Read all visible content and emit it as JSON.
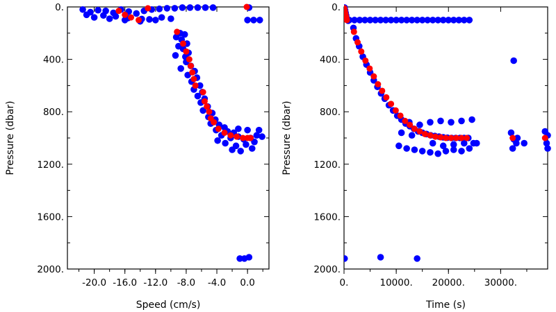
{
  "colors": {
    "raw": "#0000ff",
    "mean": "#ff0000",
    "axis": "#000000"
  },
  "chart_data": [
    {
      "type": "scatter",
      "title": "",
      "xlabel": "Speed (cm/s)",
      "ylabel": "Pressure (dbar)",
      "xlim": [
        -23.5,
        2.8
      ],
      "ylim": [
        2000,
        0
      ],
      "y_inverted": true,
      "xticks": [
        -20.0,
        -16.0,
        -12.0,
        -8.0,
        -4.0,
        0.0
      ],
      "xtick_labels": [
        "-20.0",
        "-16.0",
        "-12.0",
        "-8.0",
        "-4.0",
        "0.0"
      ],
      "yticks": [
        0,
        400,
        800,
        1200,
        1600,
        2000
      ],
      "ytick_labels": [
        "0.",
        "400.",
        "800.",
        "1200.",
        "1600.",
        "2000."
      ],
      "grid": false,
      "series": [
        {
          "role": "raw-samples",
          "points": [
            [
              -21.5,
              20
            ],
            [
              -20.5,
              40
            ],
            [
              -19.5,
              25
            ],
            [
              -18.5,
              30
            ],
            [
              -17.5,
              45
            ],
            [
              -16.5,
              20
            ],
            [
              -15.5,
              35
            ],
            [
              -14.5,
              50
            ],
            [
              -13.5,
              30
            ],
            [
              -12.5,
              20
            ],
            [
              -11.5,
              15
            ],
            [
              -10.5,
              10
            ],
            [
              -9.5,
              10
            ],
            [
              -8.5,
              5
            ],
            [
              -7.5,
              5
            ],
            [
              -6.5,
              5
            ],
            [
              -5.5,
              5
            ],
            [
              -4.5,
              5
            ],
            [
              -20.0,
              80
            ],
            [
              -18.0,
              90
            ],
            [
              -16.0,
              100
            ],
            [
              -14.0,
              110
            ],
            [
              -12.0,
              100
            ],
            [
              -10.0,
              90
            ],
            [
              -18.8,
              65
            ],
            [
              -17.2,
              72
            ],
            [
              -15.6,
              85
            ],
            [
              -13.8,
              92
            ],
            [
              -12.8,
              95
            ],
            [
              -21.0,
              60
            ],
            [
              -11.2,
              80
            ],
            [
              -8.8,
              200
            ],
            [
              -8.2,
              210
            ],
            [
              -9.3,
              230
            ],
            [
              -8.6,
              250
            ],
            [
              -7.9,
              280
            ],
            [
              -9.0,
              300
            ],
            [
              -8.4,
              320
            ],
            [
              -7.7,
              350
            ],
            [
              -9.4,
              370
            ],
            [
              -8.1,
              380
            ],
            [
              -8.0,
              420
            ],
            [
              -7.4,
              450
            ],
            [
              -8.7,
              470
            ],
            [
              -6.9,
              490
            ],
            [
              -7.8,
              520
            ],
            [
              -6.6,
              540
            ],
            [
              -7.3,
              570
            ],
            [
              -6.2,
              600
            ],
            [
              -7.0,
              630
            ],
            [
              -5.9,
              650
            ],
            [
              -6.5,
              680
            ],
            [
              -5.6,
              700
            ],
            [
              -6.1,
              730
            ],
            [
              -5.2,
              760
            ],
            [
              -5.8,
              790
            ],
            [
              -4.6,
              810
            ],
            [
              -5.1,
              840
            ],
            [
              -4.2,
              860
            ],
            [
              -4.8,
              890
            ],
            [
              -3.7,
              900
            ],
            [
              -3.0,
              920
            ],
            [
              -4.1,
              940
            ],
            [
              -2.6,
              950
            ],
            [
              -1.8,
              960
            ],
            [
              -3.4,
              980
            ],
            [
              -2.2,
              1000
            ],
            [
              -1.2,
              990
            ],
            [
              -0.5,
              1010
            ],
            [
              0.4,
              1000
            ],
            [
              1.2,
              980
            ],
            [
              1.9,
              990
            ],
            [
              -2.9,
              1040
            ],
            [
              -1.5,
              1060
            ],
            [
              -0.2,
              1050
            ],
            [
              0.9,
              1030
            ],
            [
              -3.9,
              1020
            ],
            [
              -2.0,
              1090
            ],
            [
              -0.9,
              1100
            ],
            [
              0.6,
              1080
            ],
            [
              -1.2,
              930
            ],
            [
              0.0,
              940
            ],
            [
              1.5,
              940
            ],
            [
              0.2,
              5
            ],
            [
              0.8,
              100
            ],
            [
              0.0,
              100
            ],
            [
              1.6,
              100
            ],
            [
              -1.0,
              1920
            ],
            [
              -0.4,
              1920
            ],
            [
              0.2,
              1910
            ]
          ]
        },
        {
          "role": "bin-means",
          "points": [
            [
              -16.8,
              30
            ],
            [
              -16.0,
              60
            ],
            [
              -15.2,
              80
            ],
            [
              -14.2,
              100
            ],
            [
              -13.0,
              10
            ],
            [
              -0.1,
              0
            ],
            [
              -9.2,
              190
            ],
            [
              -8.4,
              280
            ],
            [
              -8.0,
              340
            ],
            [
              -7.6,
              400
            ],
            [
              -7.4,
              450
            ],
            [
              -7.2,
              500
            ],
            [
              -7.0,
              550
            ],
            [
              -6.8,
              600
            ],
            [
              -5.8,
              650
            ],
            [
              -5.6,
              720
            ],
            [
              -5.3,
              760
            ],
            [
              -5.0,
              800
            ],
            [
              -4.8,
              850
            ],
            [
              -4.4,
              880
            ],
            [
              -3.8,
              930
            ],
            [
              -3.0,
              960
            ],
            [
              -2.2,
              980
            ],
            [
              -1.4,
              990
            ],
            [
              -0.6,
              1000
            ],
            [
              0.0,
              1000
            ],
            [
              0.4,
              1000
            ]
          ]
        }
      ]
    },
    {
      "type": "scatter",
      "title": "",
      "xlabel": "Time (s)",
      "ylabel": "Pressure (dbar)",
      "xlim": [
        0,
        39000
      ],
      "ylim": [
        2000,
        0
      ],
      "y_inverted": true,
      "xticks": [
        0,
        10000,
        20000,
        30000
      ],
      "xtick_labels": [
        "0.",
        "10000.",
        "20000.",
        "30000."
      ],
      "yticks": [
        0,
        400,
        800,
        1200,
        1600,
        2000
      ],
      "ytick_labels": [
        "0.",
        "400.",
        "800.",
        "1200.",
        "1600.",
        "2000."
      ],
      "grid": false,
      "series": [
        {
          "role": "raw-samples",
          "points": [
            [
              100,
              5
            ],
            [
              200,
              25
            ],
            [
              300,
              45
            ],
            [
              400,
              65
            ],
            [
              500,
              85
            ],
            [
              600,
              95
            ],
            [
              700,
              100
            ],
            [
              800,
              105
            ],
            [
              1000,
              100
            ],
            [
              2000,
              100
            ],
            [
              3000,
              100
            ],
            [
              4000,
              100
            ],
            [
              5000,
              100
            ],
            [
              6000,
              100
            ],
            [
              7000,
              100
            ],
            [
              8000,
              100
            ],
            [
              9000,
              100
            ],
            [
              10000,
              100
            ],
            [
              11000,
              100
            ],
            [
              12000,
              100
            ],
            [
              13000,
              100
            ],
            [
              14000,
              100
            ],
            [
              15000,
              100
            ],
            [
              16000,
              100
            ],
            [
              17000,
              100
            ],
            [
              18000,
              100
            ],
            [
              19000,
              100
            ],
            [
              20000,
              100
            ],
            [
              21000,
              100
            ],
            [
              22000,
              100
            ],
            [
              23000,
              100
            ],
            [
              24000,
              100
            ],
            [
              1800,
              160
            ],
            [
              2300,
              240
            ],
            [
              2900,
              300
            ],
            [
              3600,
              380
            ],
            [
              4300,
              440
            ],
            [
              5000,
              500
            ],
            [
              5700,
              560
            ],
            [
              6400,
              610
            ],
            [
              7100,
              660
            ],
            [
              7800,
              700
            ],
            [
              8600,
              750
            ],
            [
              9400,
              790
            ],
            [
              10200,
              830
            ],
            [
              11000,
              860
            ],
            [
              11800,
              890
            ],
            [
              12600,
              910
            ],
            [
              13400,
              930
            ],
            [
              14200,
              950
            ],
            [
              15000,
              960
            ],
            [
              15800,
              970
            ],
            [
              16600,
              980
            ],
            [
              17400,
              985
            ],
            [
              18200,
              990
            ],
            [
              19000,
              995
            ],
            [
              19800,
              998
            ],
            [
              20600,
              1000
            ],
            [
              21400,
              1000
            ],
            [
              22200,
              1000
            ],
            [
              23000,
              1000
            ],
            [
              23800,
              1000
            ],
            [
              10500,
              1060
            ],
            [
              12000,
              1080
            ],
            [
              13500,
              1090
            ],
            [
              15000,
              1100
            ],
            [
              16500,
              1110
            ],
            [
              18000,
              1120
            ],
            [
              19500,
              1100
            ],
            [
              21000,
              1090
            ],
            [
              22500,
              1100
            ],
            [
              24000,
              1080
            ],
            [
              12500,
              880
            ],
            [
              14500,
              900
            ],
            [
              16500,
              880
            ],
            [
              18500,
              870
            ],
            [
              20500,
              880
            ],
            [
              22500,
              870
            ],
            [
              24500,
              860
            ],
            [
              11000,
              960
            ],
            [
              13000,
              980
            ],
            [
              17000,
              1040
            ],
            [
              19000,
              1060
            ],
            [
              21000,
              1050
            ],
            [
              23000,
              1040
            ],
            [
              24800,
              1040
            ],
            [
              25400,
              1040
            ],
            [
              32500,
              410
            ],
            [
              32000,
              960
            ],
            [
              32500,
              1010
            ],
            [
              33000,
              1040
            ],
            [
              32300,
              1080
            ],
            [
              33200,
              1000
            ],
            [
              34500,
              1040
            ],
            [
              38500,
              950
            ],
            [
              39000,
              980
            ],
            [
              38800,
              1040
            ],
            [
              39000,
              1080
            ],
            [
              100,
              1920
            ],
            [
              7000,
              1910
            ],
            [
              14000,
              1920
            ]
          ]
        },
        {
          "role": "bin-means",
          "points": [
            [
              50,
              10
            ],
            [
              150,
              30
            ],
            [
              250,
              50
            ],
            [
              350,
              70
            ],
            [
              450,
              85
            ],
            [
              550,
              100
            ],
            [
              1900,
              190
            ],
            [
              2600,
              270
            ],
            [
              3300,
              340
            ],
            [
              4100,
              410
            ],
            [
              4900,
              470
            ],
            [
              5700,
              530
            ],
            [
              6500,
              590
            ],
            [
              7300,
              640
            ],
            [
              8100,
              690
            ],
            [
              9000,
              740
            ],
            [
              9900,
              790
            ],
            [
              10800,
              830
            ],
            [
              11700,
              870
            ],
            [
              12600,
              900
            ],
            [
              13500,
              930
            ],
            [
              14500,
              950
            ],
            [
              15500,
              970
            ],
            [
              16500,
              980
            ],
            [
              17500,
              990
            ],
            [
              18500,
              995
            ],
            [
              19500,
              1000
            ],
            [
              20500,
              1000
            ],
            [
              21500,
              1000
            ],
            [
              22500,
              1000
            ],
            [
              23500,
              1000
            ],
            [
              32300,
              1000
            ],
            [
              38500,
              1000
            ]
          ]
        }
      ]
    }
  ]
}
